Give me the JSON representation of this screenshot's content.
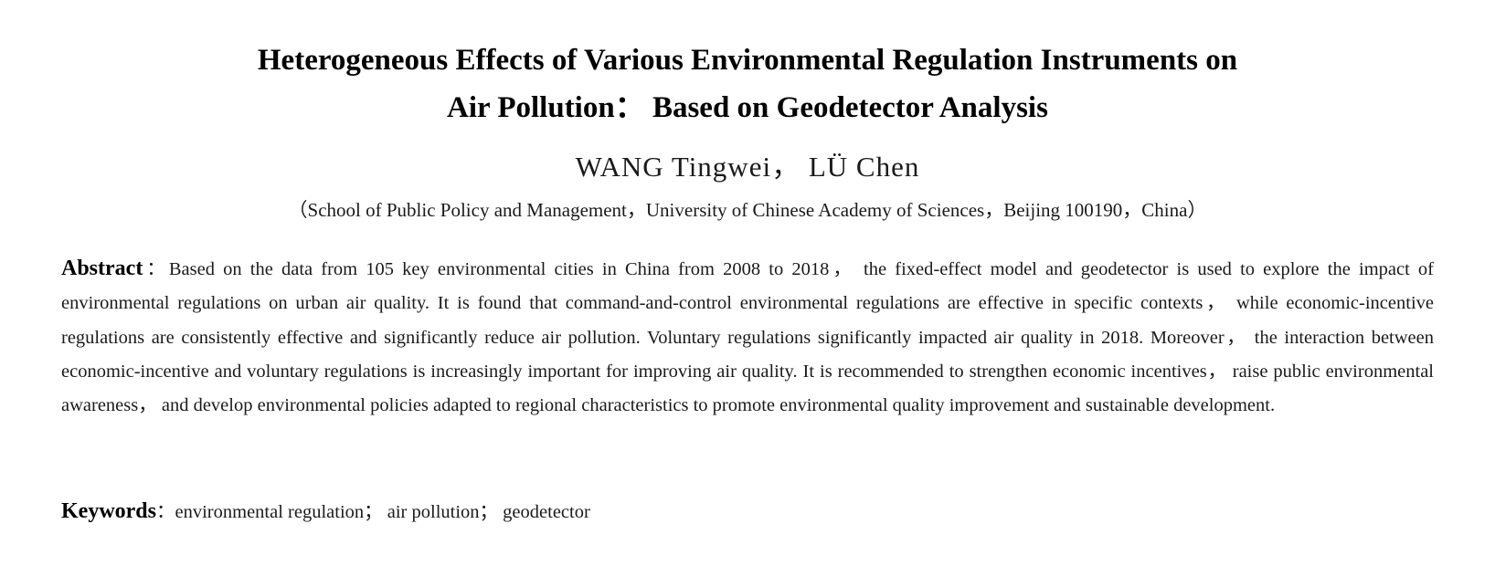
{
  "title": {
    "line1": "Heterogeneous Effects of Various Environmental Regulation Instruments on",
    "line2": "Air Pollution： Based on Geodetector Analysis"
  },
  "authors": "WANG Tingwei， LÜ Chen",
  "affiliation": "（School of Public Policy and Management，University of Chinese Academy of Sciences，Beijing 100190，China）",
  "abstract": {
    "label": "Abstract",
    "separator": "：",
    "text": "Based on the data from 105 key environmental cities in China from 2008 to 2018， the fixed-effect model and geodetector is used to explore the impact of environmental regulations on urban air quality. It is found that command-and-control environmental regulations are effective in specific contexts， while economic-incentive regulations are consistently effective and significantly reduce air pollution. Voluntary regulations significantly impacted air quality in 2018. Moreover， the interaction between economic-incentive and voluntary regulations is increasingly important for improving air quality. It is recommended to strengthen economic incentives， raise public environmental awareness， and develop environmental policies adapted to regional characteristics to promote environmental quality improvement and sustainable development."
  },
  "keywords": {
    "label": "Keywords",
    "separator": "：",
    "text": "environmental regulation； air pollution； geodetector"
  }
}
